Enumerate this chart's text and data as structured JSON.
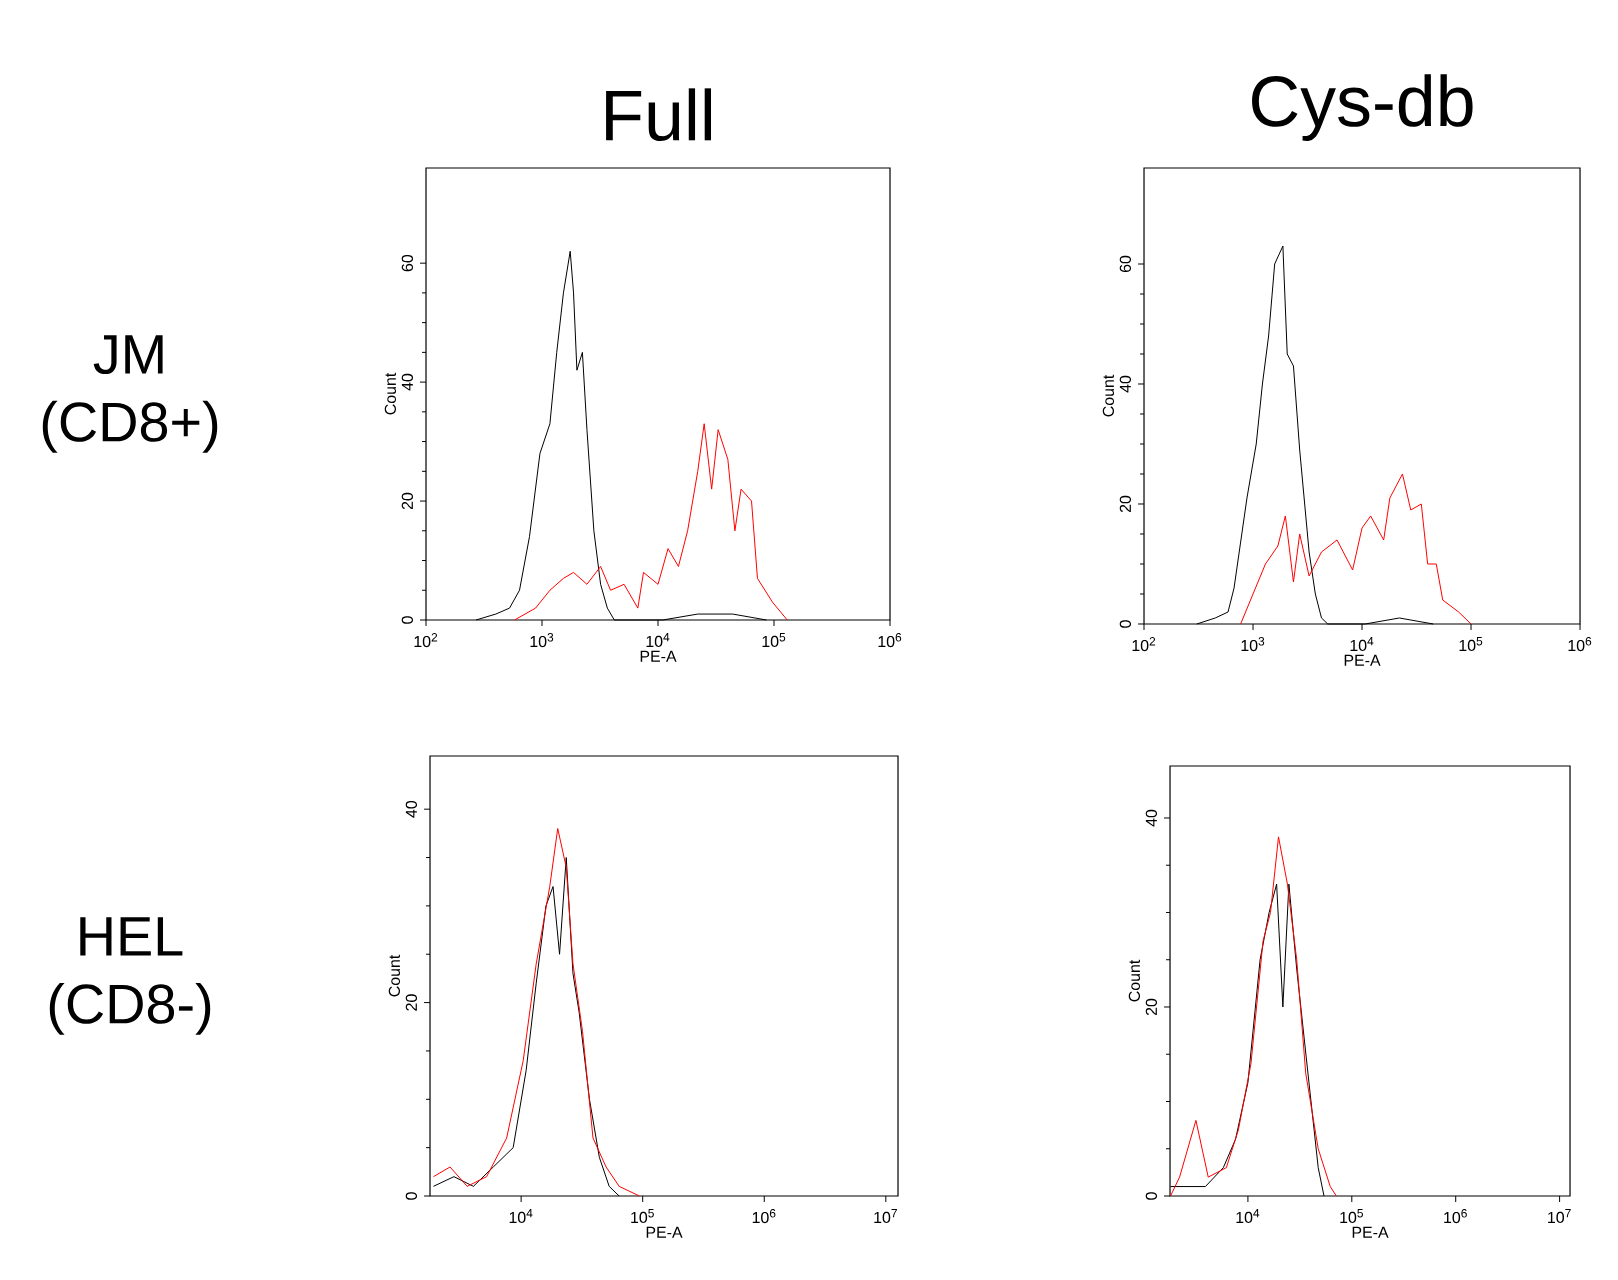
{
  "chart_data": [
    {
      "type": "line",
      "title": "Full",
      "xlabel": "PE-A",
      "ylabel": "Count",
      "log": "x",
      "marker": "none",
      "annotations": [
        "JM (CD8+)"
      ],
      "xlim": [
        100,
        1000000
      ],
      "ylim": [
        0,
        76
      ],
      "xticks": [
        {
          "value": 100,
          "label": "10$^{2}$"
        },
        {
          "value": 1000,
          "label": "10$^{3}$"
        },
        {
          "value": 10000,
          "label": "10$^{4}$"
        },
        {
          "value": 100000,
          "label": "10$^{5}$"
        },
        {
          "value": 1000000,
          "label": "10$^{6}$"
        }
      ],
      "yticks": [
        0,
        20,
        40,
        60
      ],
      "series": [
        {
          "color": "#000000",
          "x": [
            270,
            400,
            525,
            640,
            780,
            960,
            1170,
            1340,
            1530,
            1750,
            1870,
            2000,
            2230,
            2440,
            2800,
            3200,
            3660,
            4200,
            11000,
            22000,
            44000,
            86000
          ],
          "values": [
            0,
            1,
            2,
            5,
            14,
            28,
            33,
            45,
            55,
            62,
            55,
            42,
            45,
            32,
            15,
            6,
            2,
            0,
            0,
            1,
            1,
            0
          ]
        },
        {
          "color": "#ff0000",
          "x": [
            580,
            880,
            1170,
            1530,
            1870,
            2440,
            3200,
            3900,
            5100,
            6700,
            7500,
            10000,
            12200,
            15000,
            18000,
            22000,
            25000,
            29000,
            33000,
            40000,
            46000,
            52000,
            64000,
            72000,
            97000,
            130000
          ],
          "values": [
            0,
            2,
            5,
            7,
            8,
            6,
            9,
            5,
            6,
            2,
            8,
            6,
            12,
            9,
            15,
            25,
            33,
            22,
            32,
            27,
            15,
            22,
            20,
            7,
            3,
            0
          ]
        }
      ]
    },
    {
      "type": "line",
      "title": "Cys-db",
      "xlabel": "PE-A",
      "ylabel": "Count",
      "log": "x",
      "marker": "none",
      "xlim": [
        100,
        1000000
      ],
      "ylim": [
        0,
        76
      ],
      "xticks": [
        {
          "value": 100,
          "label": "10$^{2}$"
        },
        {
          "value": 1000,
          "label": "10$^{3}$"
        },
        {
          "value": 10000,
          "label": "10$^{4}$"
        },
        {
          "value": 100000,
          "label": "10$^{5}$"
        },
        {
          "value": 1000000,
          "label": "10$^{6}$"
        }
      ],
      "yticks": [
        0,
        20,
        40,
        60
      ],
      "series": [
        {
          "color": "#000000",
          "x": [
            305,
            450,
            590,
            670,
            880,
            1070,
            1220,
            1390,
            1580,
            1880,
            2060,
            2350,
            2680,
            3270,
            3730,
            4250,
            4850,
            10700,
            22000,
            45000
          ],
          "values": [
            0,
            1,
            2,
            6,
            21,
            30,
            40,
            48,
            60,
            63,
            45,
            43,
            29,
            12,
            5,
            1,
            0,
            0,
            1,
            0
          ]
        },
        {
          "color": "#ff0000",
          "x": [
            770,
            1000,
            1300,
            1690,
            1980,
            2350,
            2680,
            3270,
            4250,
            5900,
            8200,
            10000,
            12000,
            15800,
            18000,
            23500,
            28000,
            35000,
            40000,
            48000,
            55000,
            77000,
            100000
          ],
          "values": [
            0,
            5,
            10,
            13,
            18,
            7,
            15,
            8,
            12,
            14,
            9,
            16,
            18,
            14,
            21,
            25,
            19,
            20,
            10,
            10,
            4,
            2,
            0
          ]
        }
      ]
    },
    {
      "type": "line",
      "xlabel": "PE-A",
      "ylabel": "Count",
      "log": "x",
      "marker": "none",
      "annotations": [
        "HEL (CD8-)"
      ],
      "xlim": [
        1780,
        12600000
      ],
      "ylim": [
        0,
        45.5
      ],
      "xticks": [
        {
          "value": 10000,
          "label": "10$^{4}$"
        },
        {
          "value": 100000,
          "label": "10$^{5}$"
        },
        {
          "value": 1000000,
          "label": "10$^{6}$"
        },
        {
          "value": 10000000,
          "label": "10$^{7}$"
        }
      ],
      "yticks": [
        0,
        20,
        40
      ],
      "series": [
        {
          "color": "#000000",
          "x": [
            1900,
            2800,
            4050,
            5900,
            8600,
            11000,
            13300,
            16000,
            18300,
            20700,
            23500,
            26700,
            30000,
            36500,
            44000,
            53000,
            64000
          ],
          "values": [
            1,
            2,
            1,
            3,
            5,
            13,
            22,
            30,
            32,
            25,
            35,
            23,
            19,
            10,
            4,
            1,
            0
          ]
        },
        {
          "color": "#ff0000",
          "x": [
            1900,
            2600,
            3600,
            5200,
            7600,
            10400,
            13300,
            17200,
            20000,
            23500,
            26700,
            32000,
            39000,
            50000,
            64000,
            94000
          ],
          "values": [
            2,
            3,
            1,
            2,
            6,
            14,
            24,
            32,
            38,
            34,
            24,
            17,
            6,
            3,
            1,
            0
          ]
        }
      ]
    },
    {
      "type": "line",
      "xlabel": "PE-A",
      "ylabel": "Count",
      "log": "x",
      "marker": "none",
      "xlim": [
        1780,
        12600000
      ],
      "ylim": [
        0,
        45.5
      ],
      "xticks": [
        {
          "value": 10000,
          "label": "10$^{4}$"
        },
        {
          "value": 100000,
          "label": "10$^{5}$"
        },
        {
          "value": 1000000,
          "label": "10$^{6}$"
        },
        {
          "value": 10000000,
          "label": "10$^{7}$"
        }
      ],
      "yticks": [
        0,
        20,
        40
      ],
      "series": [
        {
          "color": "#000000",
          "x": [
            1800,
            2600,
            3900,
            5800,
            7600,
            10000,
            13100,
            16000,
            18900,
            21700,
            24800,
            29500,
            38700,
            47500,
            54000
          ],
          "values": [
            1,
            1,
            1,
            3,
            6,
            12,
            25,
            30,
            33,
            20,
            33,
            24,
            12,
            3,
            0
          ]
        },
        {
          "color": "#ff0000",
          "x": [
            1800,
            2200,
            3160,
            4150,
            6200,
            8100,
            10700,
            14000,
            16500,
            19700,
            24000,
            29500,
            36000,
            47500,
            62000,
            71000
          ],
          "values": [
            0,
            2,
            8,
            2,
            3,
            7,
            14,
            27,
            30,
            38,
            33,
            25,
            13,
            5,
            1,
            0
          ]
        }
      ]
    }
  ]
}
